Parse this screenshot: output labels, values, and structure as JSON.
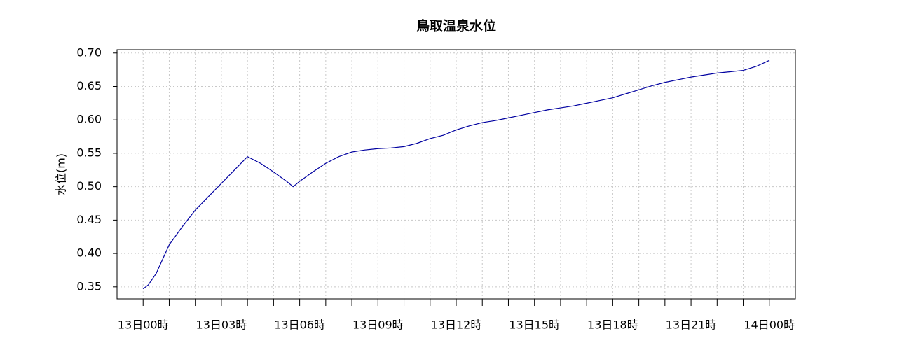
{
  "chart_data": {
    "type": "line",
    "title": "鳥取温泉水位",
    "y_label": "水位(m)",
    "x": [
      0,
      0.2,
      0.5,
      1,
      1.5,
      2,
      2.5,
      3,
      3.5,
      4,
      4.5,
      5,
      5.5,
      5.75,
      6,
      6.5,
      7,
      7.5,
      8,
      8.5,
      9,
      9.5,
      10,
      10.5,
      11,
      11.5,
      12,
      12.5,
      13,
      13.5,
      14,
      14.5,
      15,
      15.5,
      16,
      16.5,
      17,
      17.5,
      18,
      18.5,
      19,
      19.5,
      20,
      20.5,
      21,
      21.5,
      22,
      22.5,
      23,
      23.5,
      24
    ],
    "series": [
      {
        "color": "#0000a0",
        "values": [
          0.347,
          0.353,
          0.37,
          0.413,
          0.44,
          0.465,
          0.485,
          0.505,
          0.525,
          0.545,
          0.535,
          0.522,
          0.508,
          0.5,
          0.508,
          0.522,
          0.535,
          0.545,
          0.552,
          0.555,
          0.557,
          0.558,
          0.56,
          0.565,
          0.572,
          0.577,
          0.585,
          0.591,
          0.596,
          0.599,
          0.603,
          0.607,
          0.611,
          0.615,
          0.618,
          0.621,
          0.625,
          0.629,
          0.633,
          0.639,
          0.645,
          0.651,
          0.656,
          0.66,
          0.664,
          0.667,
          0.67,
          0.672,
          0.674,
          0.68,
          0.689
        ]
      }
    ],
    "xlim": [
      -1,
      25
    ],
    "ylim": [
      0.332,
      0.705
    ],
    "xticks": [
      {
        "value": 0,
        "label": "13日00時"
      },
      {
        "value": 3,
        "label": "13日03時"
      },
      {
        "value": 6,
        "label": "13日06時"
      },
      {
        "value": 9,
        "label": "13日09時"
      },
      {
        "value": 12,
        "label": "13日12時"
      },
      {
        "value": 15,
        "label": "13日15時"
      },
      {
        "value": 18,
        "label": "13日18時"
      },
      {
        "value": 21,
        "label": "13日21時"
      },
      {
        "value": 24,
        "label": "14日00時"
      }
    ],
    "xminor_ticks": [
      1,
      2,
      4,
      5,
      7,
      8,
      10,
      11,
      13,
      14,
      16,
      17,
      19,
      20,
      22,
      23
    ],
    "yticks": [
      {
        "value": 0.35,
        "label": "0.35"
      },
      {
        "value": 0.4,
        "label": "0.40"
      },
      {
        "value": 0.45,
        "label": "0.45"
      },
      {
        "value": 0.5,
        "label": "0.50"
      },
      {
        "value": 0.55,
        "label": "0.55"
      },
      {
        "value": 0.6,
        "label": "0.60"
      },
      {
        "value": 0.65,
        "label": "0.65"
      },
      {
        "value": 0.7,
        "label": "0.70"
      }
    ],
    "grid": true
  }
}
